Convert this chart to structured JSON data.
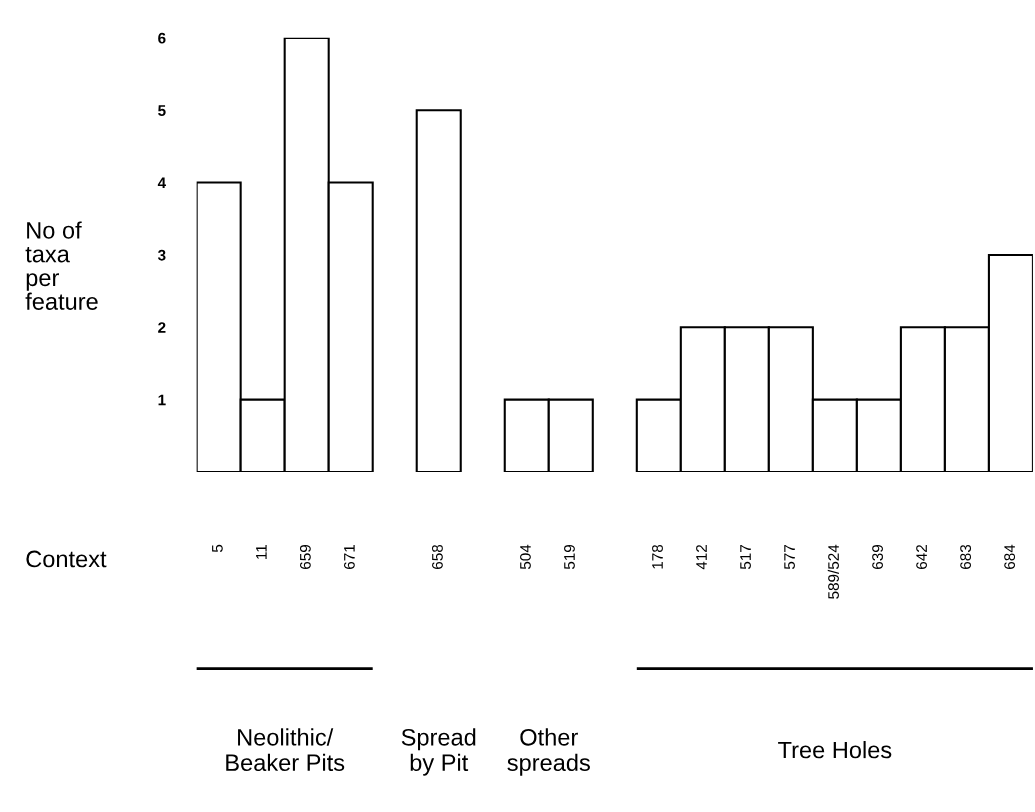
{
  "chart_data": {
    "type": "bar",
    "categories": [
      "5",
      "11",
      "659",
      "671",
      null,
      "658",
      null,
      "504",
      "519",
      null,
      "178",
      "412",
      "517",
      "577",
      "589/524",
      "639",
      "642",
      "683",
      "684"
    ],
    "values": [
      4,
      1,
      6,
      4,
      null,
      5,
      null,
      1,
      1,
      null,
      1,
      2,
      2,
      2,
      1,
      1,
      2,
      2,
      3
    ],
    "color": "#ffffff",
    "ylabel": "No of\ntaxa\nper\nfeature",
    "xlabel": "Context",
    "ylim": [
      0,
      6
    ],
    "yticks": [
      1,
      2,
      3,
      4,
      5,
      6
    ],
    "grid": false,
    "annotations": [
      "Neolithic/\nBeaker Pits",
      "Spread\nby Pit",
      "Other\nspreads",
      "Tree Holes"
    ]
  }
}
